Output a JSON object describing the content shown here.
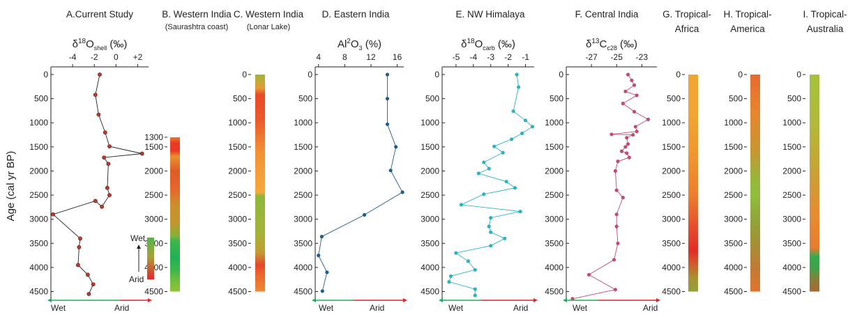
{
  "y_axis_label": "Age (cal yr BP)",
  "legend_wet_arid": {
    "top": "Wet",
    "bottom": "Arid"
  },
  "chart_data": [
    {
      "id": "A",
      "type": "line",
      "title": "A.Current Study",
      "xlabel": "δ18Oshell (‰)",
      "xlabel_parts": [
        "δ",
        "18",
        "O",
        "shell",
        " (‰)"
      ],
      "xticks": [
        "-4",
        "-2",
        "0",
        "+2"
      ],
      "xtick_values": [
        -4,
        -2,
        0,
        2
      ],
      "xlim": [
        -6,
        3
      ],
      "yticks": [
        0,
        500,
        1000,
        1500,
        2000,
        2500,
        3000,
        3500,
        4000,
        4500
      ],
      "ylim": [
        0,
        4700
      ],
      "color": "#c0392b",
      "points": [
        [
          -1.5,
          0
        ],
        [
          -1.9,
          420
        ],
        [
          -1.6,
          830
        ],
        [
          -1.0,
          1200
        ],
        [
          -0.6,
          1490
        ],
        [
          2.4,
          1640
        ],
        [
          -1.1,
          1720
        ],
        [
          -0.7,
          1850
        ],
        [
          -0.8,
          2350
        ],
        [
          -0.6,
          2500
        ],
        [
          -1.3,
          2740
        ],
        [
          -1.9,
          2620
        ],
        [
          -5.8,
          2900
        ],
        [
          -3.3,
          3400
        ],
        [
          -3.4,
          3580
        ],
        [
          -3.5,
          3950
        ],
        [
          -2.6,
          4150
        ],
        [
          -2.1,
          4350
        ],
        [
          -2.5,
          4550
        ]
      ],
      "bottom_labels": [
        "Wet",
        "Arid"
      ]
    },
    {
      "id": "B",
      "type": "heatmap",
      "title": "B. Western India",
      "subtitle": "(Saurashtra coast)",
      "yticks": [
        1300,
        1500,
        2000,
        2500,
        3000,
        3500,
        4000,
        4500
      ],
      "range": [
        1300,
        4500
      ],
      "bands": [
        [
          1300,
          "#e87c2a"
        ],
        [
          1420,
          "#ea3a26"
        ],
        [
          1580,
          "#ea3a26"
        ],
        [
          1700,
          "#e8922e"
        ],
        [
          2000,
          "#e05a28"
        ],
        [
          2400,
          "#e5682c"
        ],
        [
          2700,
          "#cc8f2c"
        ],
        [
          3100,
          "#c29530"
        ],
        [
          3350,
          "#7fb43a"
        ],
        [
          3450,
          "#3cb64b"
        ],
        [
          3800,
          "#22b055"
        ],
        [
          4050,
          "#3bb84a"
        ],
        [
          4300,
          "#76be3a"
        ],
        [
          4500,
          "#8ec43a"
        ]
      ]
    },
    {
      "id": "C",
      "type": "heatmap",
      "title": "C. Western India",
      "subtitle": "(Lonar Lake)",
      "yticks": [
        0,
        500,
        1000,
        1500,
        2000,
        2500,
        3000,
        3500,
        4000,
        4500
      ],
      "range": [
        0,
        4500
      ],
      "bands": [
        [
          0,
          "#a2b43a"
        ],
        [
          280,
          "#e59b34"
        ],
        [
          420,
          "#ea4a28"
        ],
        [
          950,
          "#ec5a29"
        ],
        [
          1600,
          "#f19235"
        ],
        [
          2450,
          "#f5a93a"
        ],
        [
          2520,
          "#8eb73c"
        ],
        [
          3300,
          "#a5b33a"
        ],
        [
          3700,
          "#c49a32"
        ],
        [
          3950,
          "#e4462a"
        ],
        [
          4100,
          "#e9612b"
        ],
        [
          4500,
          "#f08833"
        ]
      ]
    },
    {
      "id": "D",
      "type": "line",
      "title": "D. Eastern India",
      "xlabel": "Al2O3 (%)",
      "xlabel_parts": [
        "Al",
        "2",
        "O",
        "3",
        " (%)"
      ],
      "xticks": [
        "4",
        "8",
        "12",
        "16"
      ],
      "xtick_values": [
        4,
        8,
        12,
        16
      ],
      "xlim": [
        3.5,
        17
      ],
      "yticks": [
        0,
        500,
        1000,
        1500,
        2000,
        2500,
        3000,
        3500,
        4000,
        4500
      ],
      "ylim": [
        0,
        4700
      ],
      "color": "#1f5f8b",
      "points": [
        [
          14.5,
          0
        ],
        [
          14.5,
          500
        ],
        [
          14.5,
          1030
        ],
        [
          15.8,
          1500
        ],
        [
          15.0,
          1990
        ],
        [
          16.8,
          2440
        ],
        [
          11.0,
          2910
        ],
        [
          4.5,
          3360
        ],
        [
          4.0,
          3750
        ],
        [
          5.3,
          4100
        ],
        [
          4.6,
          4490
        ]
      ],
      "bottom_labels": [
        "Wet",
        "Arid"
      ]
    },
    {
      "id": "E",
      "type": "line",
      "title": "E. NW Himalaya",
      "xlabel": "δ18Ocarb (‰)",
      "xlabel_parts": [
        "δ",
        "18",
        "O",
        "carb",
        " (‰)"
      ],
      "xticks": [
        "-5",
        "-4",
        "-3",
        "-2",
        "-1"
      ],
      "xtick_values": [
        -5,
        -4,
        -3,
        -2,
        -1
      ],
      "xlim": [
        -5.8,
        -0.5
      ],
      "yticks": [
        0,
        500,
        1000,
        1500,
        2000,
        2500,
        3000,
        3500,
        4000,
        4500
      ],
      "ylim": [
        0,
        4700
      ],
      "color": "#2bb3c0",
      "points": [
        [
          -1.5,
          0
        ],
        [
          -1.4,
          260
        ],
        [
          -1.7,
          760
        ],
        [
          -1.0,
          950
        ],
        [
          -0.6,
          1080
        ],
        [
          -1.2,
          1220
        ],
        [
          -1.8,
          1340
        ],
        [
          -2.8,
          1490
        ],
        [
          -2.3,
          1620
        ],
        [
          -3.4,
          1820
        ],
        [
          -3.1,
          1950
        ],
        [
          -3.7,
          2050
        ],
        [
          -2.1,
          2220
        ],
        [
          -1.6,
          2350
        ],
        [
          -3.4,
          2480
        ],
        [
          -4.7,
          2700
        ],
        [
          -1.3,
          2840
        ],
        [
          -3.0,
          2970
        ],
        [
          -3.1,
          3150
        ],
        [
          -3.0,
          3270
        ],
        [
          -2.2,
          3400
        ],
        [
          -3.0,
          3550
        ],
        [
          -5.0,
          3700
        ],
        [
          -4.3,
          3870
        ],
        [
          -3.9,
          4050
        ],
        [
          -5.3,
          4180
        ],
        [
          -5.4,
          4300
        ],
        [
          -3.9,
          4450
        ],
        [
          -3.9,
          4580
        ]
      ],
      "bottom_labels": [
        "Wet",
        "Arid"
      ]
    },
    {
      "id": "F",
      "type": "line",
      "title": "F. Central India",
      "xlabel": "δ13C28 (‰)",
      "xlabel_parts": [
        "δ",
        "13",
        "C",
        "c28",
        " (‰)"
      ],
      "xticks": [
        "-27",
        "-25",
        "-23"
      ],
      "xtick_values": [
        -27,
        -25,
        -23
      ],
      "xlim": [
        -29,
        -21.8
      ],
      "yticks": [
        0,
        500,
        1000,
        1500,
        2000,
        2500,
        3000,
        3500,
        4000,
        4500
      ],
      "ylim": [
        0,
        4700
      ],
      "color": "#c24a78",
      "points": [
        [
          -24.1,
          0
        ],
        [
          -23.8,
          120
        ],
        [
          -23.6,
          220
        ],
        [
          -24.3,
          350
        ],
        [
          -23.4,
          430
        ],
        [
          -24.5,
          600
        ],
        [
          -23.6,
          770
        ],
        [
          -22.5,
          930
        ],
        [
          -23.5,
          1080
        ],
        [
          -23.4,
          1180
        ],
        [
          -25.4,
          1240
        ],
        [
          -23.7,
          1250
        ],
        [
          -24.2,
          1310
        ],
        [
          -24.1,
          1440
        ],
        [
          -24.3,
          1500
        ],
        [
          -24.6,
          1590
        ],
        [
          -24.2,
          1630
        ],
        [
          -24.0,
          1720
        ],
        [
          -24.9,
          1800
        ],
        [
          -25.1,
          2000
        ],
        [
          -25.0,
          2400
        ],
        [
          -24.5,
          2550
        ],
        [
          -25.0,
          2900
        ],
        [
          -25.0,
          3150
        ],
        [
          -24.9,
          3500
        ],
        [
          -25.2,
          3840
        ],
        [
          -27.2,
          4150
        ],
        [
          -25.1,
          4460
        ],
        [
          -28.5,
          4650
        ]
      ],
      "bottom_labels": [
        "Wet",
        "Arid"
      ]
    },
    {
      "id": "G",
      "type": "heatmap",
      "title": "G. Tropical-",
      "subtitle": "Africa",
      "yticks": [
        0,
        500,
        1000,
        1500,
        2000,
        2500,
        3000,
        3500,
        4000,
        4500
      ],
      "range": [
        0,
        4500
      ],
      "bands": [
        [
          0,
          "#f0a630"
        ],
        [
          800,
          "#f1a632"
        ],
        [
          1700,
          "#f0952f"
        ],
        [
          2500,
          "#ec7e2e"
        ],
        [
          3200,
          "#e54b2c"
        ],
        [
          3650,
          "#e32c28"
        ],
        [
          3900,
          "#d2572c"
        ],
        [
          4200,
          "#a98f33"
        ],
        [
          4500,
          "#93a236"
        ]
      ]
    },
    {
      "id": "H",
      "type": "heatmap",
      "title": "H. Tropical-",
      "subtitle": "America",
      "yticks": [
        0,
        500,
        1000,
        1500,
        2000,
        2500,
        3000,
        3500,
        4000,
        4500
      ],
      "range": [
        0,
        4500
      ],
      "bands": [
        [
          0,
          "#e66a2f"
        ],
        [
          800,
          "#e8852f"
        ],
        [
          1600,
          "#c79632"
        ],
        [
          2100,
          "#9bb33b"
        ],
        [
          2500,
          "#8fbf3c"
        ],
        [
          3000,
          "#8fa538"
        ],
        [
          3500,
          "#a68f36"
        ],
        [
          4000,
          "#c17b34"
        ],
        [
          4500,
          "#e2742f"
        ]
      ]
    },
    {
      "id": "I",
      "type": "heatmap",
      "title": "I. Tropical-",
      "subtitle": "Australia",
      "yticks": [
        0,
        500,
        1000,
        1500,
        2000,
        2500,
        3000,
        3500,
        4000,
        4500
      ],
      "range": [
        0,
        4500
      ],
      "bands": [
        [
          0,
          "#a4c13a"
        ],
        [
          1000,
          "#b2b93a"
        ],
        [
          2000,
          "#c8a236"
        ],
        [
          3000,
          "#e78a31"
        ],
        [
          3600,
          "#e77c2f"
        ],
        [
          3780,
          "#2fab4e"
        ],
        [
          4050,
          "#4a9e47"
        ],
        [
          4250,
          "#8a7c3a"
        ],
        [
          4500,
          "#a56a34"
        ]
      ]
    }
  ]
}
